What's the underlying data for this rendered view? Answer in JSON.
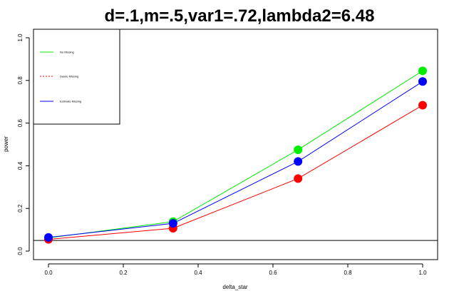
{
  "chart_data": {
    "type": "line",
    "title": "d=.1,m=.5,var1=.72,lambda2=6.48",
    "xlabel": "delta_star",
    "ylabel": "power",
    "x": [
      0,
      0.333,
      0.667,
      1.0
    ],
    "xlim": [
      -0.04,
      1.04
    ],
    "ylim": [
      -0.04,
      1.04
    ],
    "xticks": [
      "0.0",
      "0.2",
      "0.4",
      "0.6",
      "0.8",
      "1.0"
    ],
    "yticks": [
      "0.0",
      "0.2",
      "0.4",
      "0.6",
      "0.8",
      "1.0"
    ],
    "reference_line_y": 0.05,
    "grid": false,
    "legend": {
      "placement": "top-left",
      "entries": [
        "No Missing",
        "Delete Missing",
        "Estimate Missing"
      ]
    },
    "series": [
      {
        "name": "No Missing",
        "color": "#00ee00",
        "line_style": "solid",
        "values": [
          0.062,
          0.138,
          0.475,
          0.845
        ]
      },
      {
        "name": "Delete Missing",
        "color": "#ff0000",
        "line_style": "dashed",
        "values": [
          0.055,
          0.107,
          0.34,
          0.684
        ]
      },
      {
        "name": "Estimate Missing",
        "color": "#0000ff",
        "line_style": "solid",
        "values": [
          0.064,
          0.13,
          0.42,
          0.795
        ]
      }
    ]
  }
}
